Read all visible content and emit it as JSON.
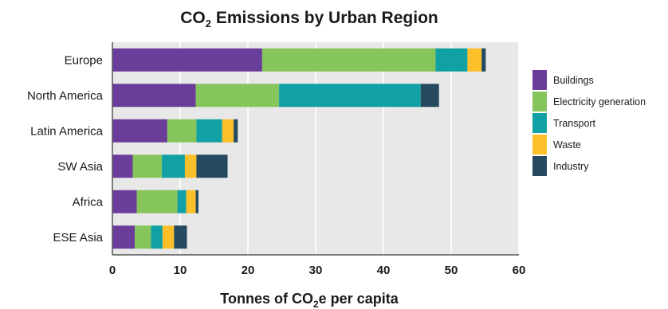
{
  "chart_data": {
    "type": "bar",
    "orientation": "horizontal",
    "stacked": true,
    "title_parts": [
      "CO",
      "2",
      " Emissions by Urban Region"
    ],
    "xlabel_parts": [
      "Tonnes of CO",
      "2",
      "e per capita"
    ],
    "categories": [
      "Europe",
      "North America",
      "Latin America",
      "SW Asia",
      "Africa",
      "ESE Asia"
    ],
    "series": [
      {
        "name": "Buildings",
        "color": "#6a3d9a",
        "values": [
          22.1,
          12.3,
          8.1,
          3.0,
          3.6,
          3.3
        ]
      },
      {
        "name": "Electricity generation",
        "color": "#86c55b",
        "values": [
          25.6,
          12.3,
          4.3,
          4.3,
          6.0,
          2.4
        ]
      },
      {
        "name": "Transport",
        "color": "#11a0a3",
        "values": [
          4.7,
          20.9,
          3.8,
          3.4,
          1.3,
          1.7
        ]
      },
      {
        "name": "Waste",
        "color": "#fbbf2a",
        "values": [
          2.1,
          0.0,
          1.7,
          1.7,
          1.4,
          1.7
        ]
      },
      {
        "name": "Industry",
        "color": "#25495e",
        "values": [
          0.6,
          2.7,
          0.6,
          4.6,
          0.4,
          1.9
        ]
      }
    ],
    "xlim": [
      0,
      60
    ],
    "xticks": [
      "0",
      "10",
      "20",
      "30",
      "40",
      "50",
      "60"
    ],
    "grid": true,
    "legend_position": "right"
  }
}
